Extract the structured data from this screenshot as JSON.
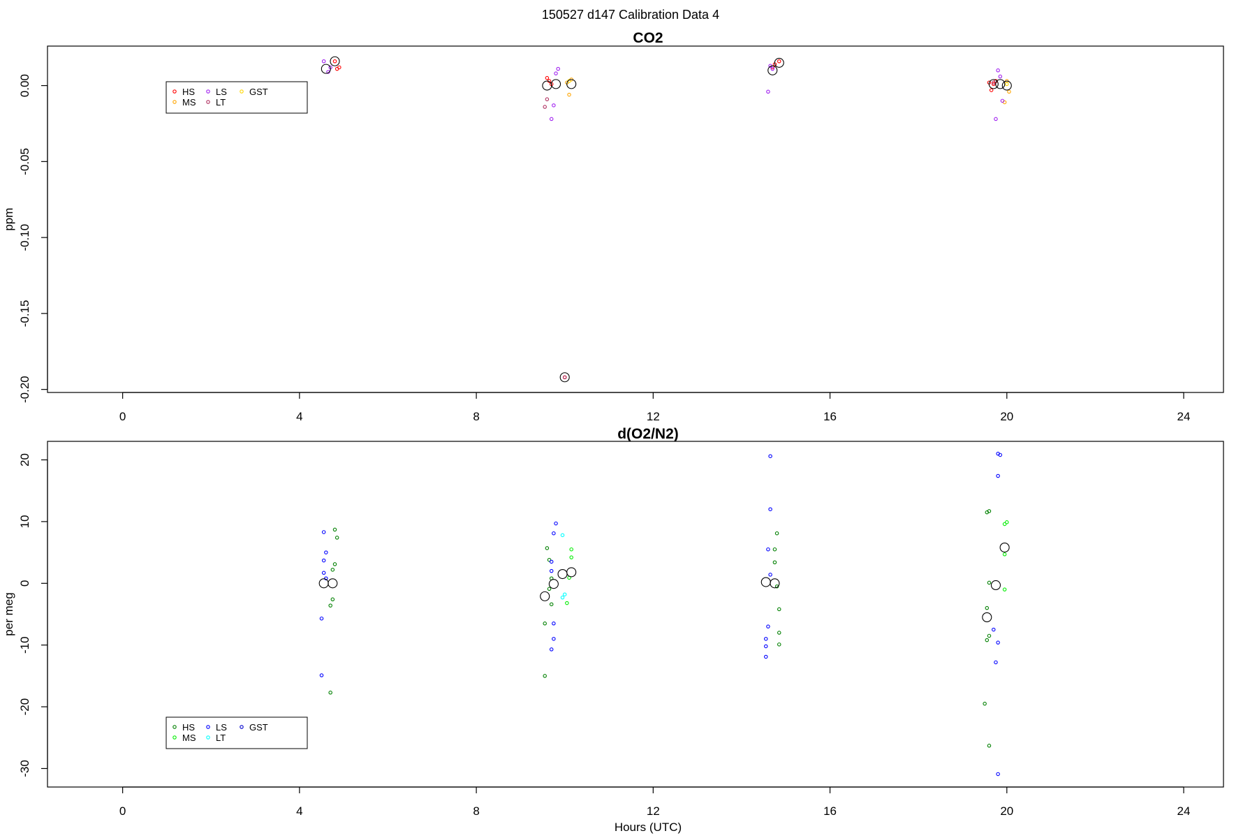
{
  "page": {
    "supertitle": "150527   d147   Calibration Data 4"
  },
  "chart_data": [
    {
      "type": "scatter",
      "title": "CO2",
      "xlabel": "",
      "ylabel": "ppm",
      "xlim": [
        -1.7,
        24.9
      ],
      "ylim": [
        -0.202,
        0.026
      ],
      "xticks": [
        0,
        4,
        8,
        12,
        16,
        20,
        24
      ],
      "yticks": [
        0.0,
        -0.05,
        -0.1,
        -0.15,
        -0.2
      ],
      "ytick_labels": [
        "0.00",
        "-0.05",
        "-0.10",
        "-0.15",
        "-0.20"
      ],
      "legend": {
        "position": "top-left",
        "entries": [
          "HS",
          "LS",
          "GST",
          "MS",
          "LT"
        ]
      },
      "series": [
        {
          "name": "HS",
          "color": "#ff0000",
          "points": [
            [
              4.8,
              0.016
            ],
            [
              4.85,
              0.011
            ],
            [
              4.9,
              0.012
            ],
            [
              9.6,
              0.005
            ],
            [
              9.65,
              0.003
            ],
            [
              9.7,
              0.001
            ],
            [
              14.7,
              0.012
            ],
            [
              14.75,
              0.014
            ],
            [
              14.85,
              0.016
            ],
            [
              19.6,
              0.002
            ],
            [
              19.65,
              -0.003
            ],
            [
              19.7,
              0.001
            ],
            [
              19.75,
              0.003
            ],
            [
              10.0,
              -0.192
            ]
          ]
        },
        {
          "name": "MS",
          "color": "#ffa500",
          "points": [
            [
              10.05,
              0.002
            ],
            [
              10.1,
              -0.006
            ],
            [
              10.15,
              0.004
            ],
            [
              20.0,
              0.003
            ],
            [
              20.05,
              -0.004
            ],
            [
              19.95,
              -0.011
            ]
          ]
        },
        {
          "name": "LS",
          "color": "#a020f0",
          "points": [
            [
              4.55,
              0.016
            ],
            [
              4.65,
              0.009
            ],
            [
              4.7,
              0.012
            ],
            [
              9.7,
              -0.022
            ],
            [
              9.75,
              -0.013
            ],
            [
              9.8,
              0.008
            ],
            [
              9.85,
              0.011
            ],
            [
              14.6,
              -0.004
            ],
            [
              14.65,
              0.013
            ],
            [
              14.7,
              0.011
            ],
            [
              19.75,
              -0.022
            ],
            [
              19.8,
              0.01
            ],
            [
              19.85,
              0.006
            ],
            [
              19.9,
              -0.01
            ]
          ]
        },
        {
          "name": "LT",
          "color": "#b03060",
          "points": [
            [
              9.6,
              -0.009
            ],
            [
              9.55,
              -0.014
            ],
            [
              10.0,
              -0.192
            ],
            [
              19.7,
              0.002
            ]
          ]
        },
        {
          "name": "GST",
          "color": "#ffd700",
          "points": [
            [
              10.1,
              0.003
            ],
            [
              20.0,
              0.001
            ]
          ]
        }
      ],
      "means": [
        [
          4.6,
          0.011
        ],
        [
          4.8,
          0.016
        ],
        [
          9.6,
          0.0
        ],
        [
          9.8,
          0.001
        ],
        [
          10.15,
          0.001
        ],
        [
          14.7,
          0.01
        ],
        [
          14.85,
          0.015
        ],
        [
          19.7,
          0.001
        ],
        [
          19.85,
          0.001
        ],
        [
          20.0,
          0.0
        ],
        [
          10.0,
          -0.192
        ]
      ]
    },
    {
      "type": "scatter",
      "title": "d(O2/N2)",
      "xlabel": "Hours (UTC)",
      "ylabel": "per meg",
      "xlim": [
        -1.7,
        24.9
      ],
      "ylim": [
        -33.0,
        23.0
      ],
      "xticks": [
        0,
        4,
        8,
        12,
        16,
        20,
        24
      ],
      "yticks": [
        20,
        10,
        0,
        -10,
        -20,
        -30
      ],
      "ytick_labels": [
        "20",
        "10",
        "0",
        "-10",
        "-20",
        "-30"
      ],
      "legend": {
        "position": "bottom-left",
        "entries": [
          "HS",
          "LS",
          "GST",
          "MS",
          "LT"
        ]
      },
      "series": [
        {
          "name": "HS",
          "color": "#008000",
          "points": [
            [
              4.8,
              8.7
            ],
            [
              4.85,
              7.4
            ],
            [
              4.8,
              3.1
            ],
            [
              4.75,
              2.2
            ],
            [
              4.75,
              -2.6
            ],
            [
              4.7,
              -3.6
            ],
            [
              4.7,
              -17.7
            ],
            [
              9.6,
              5.7
            ],
            [
              9.65,
              3.8
            ],
            [
              9.7,
              0.8
            ],
            [
              9.65,
              -0.9
            ],
            [
              9.7,
              -3.4
            ],
            [
              9.55,
              -6.5
            ],
            [
              9.55,
              -15.0
            ],
            [
              14.8,
              8.1
            ],
            [
              14.75,
              5.5
            ],
            [
              14.75,
              3.4
            ],
            [
              14.8,
              -0.5
            ],
            [
              14.85,
              -4.2
            ],
            [
              14.85,
              -8.0
            ],
            [
              14.85,
              -9.9
            ],
            [
              19.55,
              11.5
            ],
            [
              19.6,
              11.7
            ],
            [
              19.6,
              0.1
            ],
            [
              19.55,
              -4.0
            ],
            [
              19.55,
              -9.2
            ],
            [
              19.6,
              -8.5
            ],
            [
              19.5,
              -19.5
            ],
            [
              19.6,
              -26.3
            ]
          ]
        },
        {
          "name": "MS",
          "color": "#00ee00",
          "points": [
            [
              10.15,
              5.5
            ],
            [
              10.15,
              4.2
            ],
            [
              10.1,
              0.9
            ],
            [
              10.05,
              -3.2
            ],
            [
              20.0,
              9.9
            ],
            [
              19.95,
              9.6
            ],
            [
              19.95,
              4.7
            ],
            [
              19.95,
              -1.0
            ]
          ]
        },
        {
          "name": "LS",
          "color": "#0000ff",
          "points": [
            [
              4.55,
              8.3
            ],
            [
              4.6,
              5.0
            ],
            [
              4.55,
              3.7
            ],
            [
              4.55,
              1.7
            ],
            [
              4.6,
              0.8
            ],
            [
              4.5,
              -5.7
            ],
            [
              4.5,
              -14.9
            ],
            [
              9.8,
              9.7
            ],
            [
              9.75,
              8.1
            ],
            [
              9.7,
              3.5
            ],
            [
              9.7,
              2.0
            ],
            [
              9.75,
              -6.5
            ],
            [
              9.75,
              -9.0
            ],
            [
              9.7,
              -10.7
            ],
            [
              14.65,
              20.6
            ],
            [
              14.65,
              12.0
            ],
            [
              14.6,
              5.5
            ],
            [
              14.65,
              1.4
            ],
            [
              14.6,
              -7.0
            ],
            [
              14.55,
              -9.0
            ],
            [
              14.55,
              -10.2
            ],
            [
              14.55,
              -11.9
            ],
            [
              19.85,
              20.8
            ],
            [
              19.8,
              21.0
            ],
            [
              19.8,
              17.4
            ],
            [
              19.7,
              -7.5
            ],
            [
              19.8,
              -9.6
            ],
            [
              19.75,
              -12.8
            ],
            [
              19.8,
              -30.9
            ]
          ]
        },
        {
          "name": "LT",
          "color": "#00ffff",
          "points": [
            [
              9.95,
              7.8
            ],
            [
              10.0,
              -1.8
            ],
            [
              9.95,
              -2.3
            ]
          ]
        },
        {
          "name": "GST",
          "color": "#0000cd",
          "points": []
        }
      ],
      "means": [
        [
          4.55,
          0.0
        ],
        [
          4.75,
          0.0
        ],
        [
          9.55,
          -2.1
        ],
        [
          9.75,
          -0.1
        ],
        [
          9.95,
          1.5
        ],
        [
          10.15,
          1.8
        ],
        [
          14.55,
          0.2
        ],
        [
          14.75,
          0.0
        ],
        [
          19.55,
          -5.5
        ],
        [
          19.75,
          -0.3
        ],
        [
          19.95,
          5.8
        ]
      ]
    }
  ]
}
